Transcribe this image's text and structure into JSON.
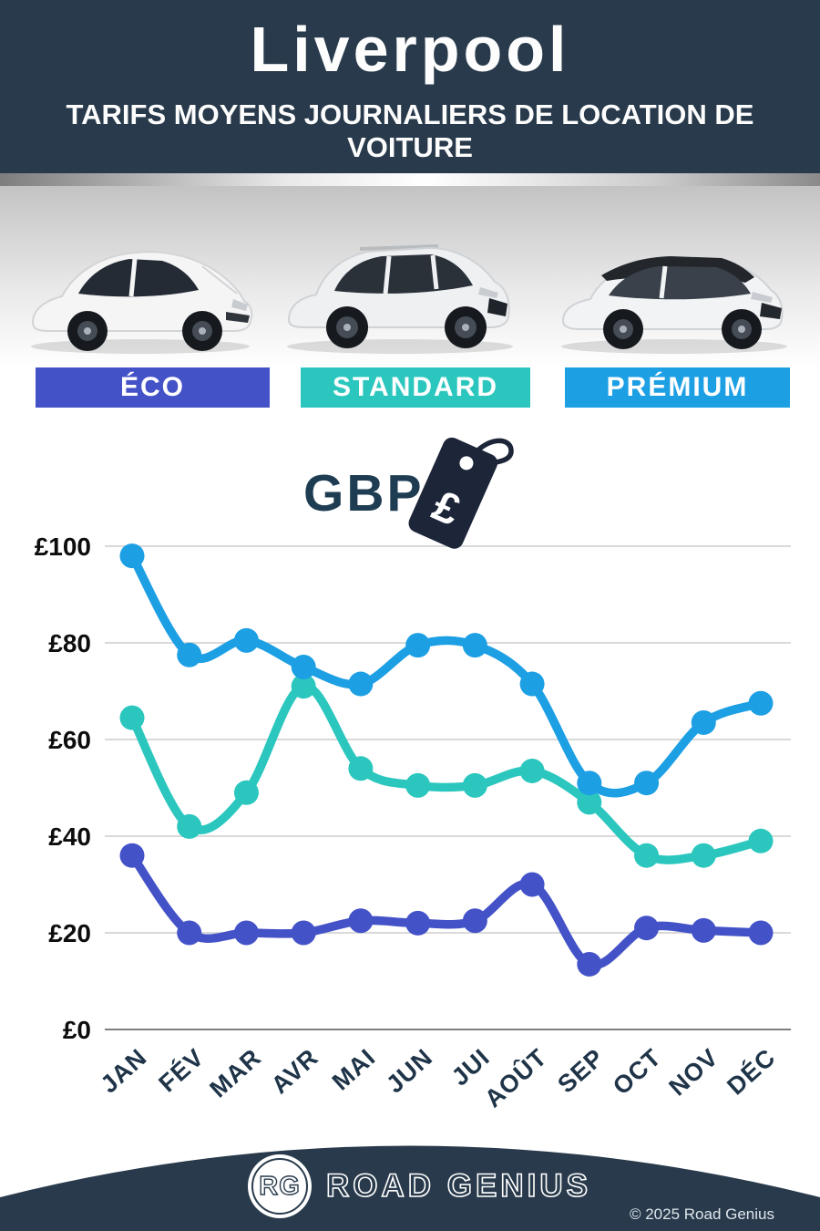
{
  "header": {
    "title": "Liverpool",
    "subtitle": "TARIFS MOYENS JOURNALIERS DE LOCATION DE VOITURE"
  },
  "categories": [
    {
      "label": "ÉCO",
      "color": "#4452c8",
      "vehicle": "white-hatchback-car"
    },
    {
      "label": "STANDARD",
      "color": "#2bc7be",
      "vehicle": "white-suv-car"
    },
    {
      "label": "PRÉMIUM",
      "color": "#1d9fe4",
      "vehicle": "white-premium-suv-car"
    }
  ],
  "currency": {
    "label": "GBP",
    "symbol": "£",
    "icon": "price-tag-icon",
    "tag_color": "#1d2539"
  },
  "chart_data": {
    "type": "line",
    "x": [
      "JAN",
      "FÉV",
      "MAR",
      "AVR",
      "MAI",
      "JUN",
      "JUI",
      "AOÛT",
      "SEP",
      "OCT",
      "NOV",
      "DÉC"
    ],
    "series": [
      {
        "name": "PRÉMIUM",
        "color": "#1d9fe4",
        "values": [
          98,
          77.5,
          80.5,
          75,
          71.5,
          79.5,
          79.5,
          71.5,
          51,
          51,
          63.5,
          67.5
        ]
      },
      {
        "name": "STANDARD",
        "color": "#2bc7be",
        "values": [
          64.5,
          42,
          49,
          71,
          54,
          50.5,
          50.5,
          53.5,
          47,
          36,
          36,
          39
        ]
      },
      {
        "name": "ÉCO",
        "color": "#4452c8",
        "values": [
          36,
          20,
          20,
          20,
          22.5,
          22,
          22.5,
          30,
          13.5,
          21,
          20.5,
          20
        ]
      }
    ],
    "ytick_prefix": "£",
    "yticks": [
      0,
      20,
      40,
      60,
      80,
      100
    ],
    "ylim": [
      0,
      100
    ],
    "grid": true,
    "legend_position": "category-bars-above-chart",
    "grid_color": "#d9d9d9",
    "axis_color": "#808080"
  },
  "footer": {
    "logo_initials": "RG",
    "brand": "ROAD GENIUS",
    "copyright": "© 2025 Road Genius"
  }
}
